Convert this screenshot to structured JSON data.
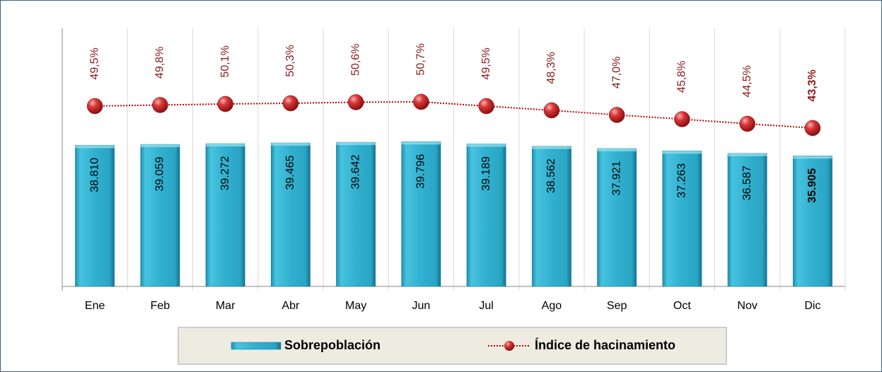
{
  "chart_data": {
    "type": "bar-line",
    "categories": [
      "Ene",
      "Feb",
      "Mar",
      "Abr",
      "May",
      "Jun",
      "Jul",
      "Ago",
      "Sep",
      "Oct",
      "Nov",
      "Dic"
    ],
    "series": [
      {
        "name": "Sobrepoblación",
        "type": "bar",
        "color": "#31b0cf",
        "values": [
          38810,
          39059,
          39272,
          39465,
          39642,
          39796,
          39189,
          38562,
          37921,
          37263,
          36587,
          35905
        ],
        "value_labels": [
          "38.810",
          "39.059",
          "39.272",
          "39.465",
          "39.642",
          "39.796",
          "39.189",
          "38.562",
          "37.921",
          "37.263",
          "36.587",
          "35.905"
        ]
      },
      {
        "name": "Índice de hacinamiento",
        "type": "line",
        "axis": "y2",
        "color": "#c00000",
        "values": [
          49.5,
          49.8,
          50.1,
          50.3,
          50.6,
          50.7,
          49.5,
          48.3,
          47.0,
          45.8,
          44.5,
          43.3
        ],
        "value_labels": [
          "49,5%",
          "49,8%",
          "50,1%",
          "50,3%",
          "50,6%",
          "50,7%",
          "49,5%",
          "48,3%",
          "47,0%",
          "45,8%",
          "44,5%",
          "43,3%"
        ]
      }
    ],
    "ylim": [
      0,
      70000
    ],
    "y2lim": [
      -1.5,
      70.5
    ],
    "bold_index": 11,
    "legend": "bottom"
  }
}
